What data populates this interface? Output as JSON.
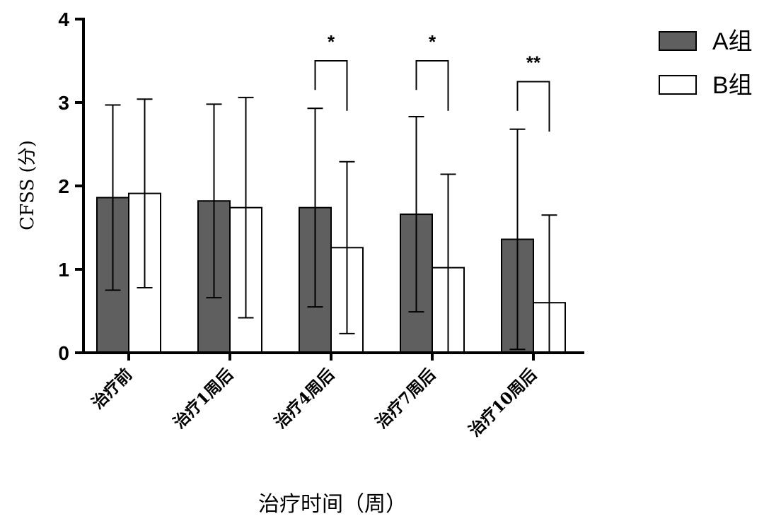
{
  "chart_data": {
    "type": "bar",
    "title": "",
    "xlabel": "治疗时间（周）",
    "ylabel": "CFSS (分)",
    "ylim": [
      0,
      4
    ],
    "yticks": [
      0,
      1,
      2,
      3,
      4
    ],
    "categories": [
      "治疗前",
      "治疗1周后",
      "治疗4周后",
      "治疗7周后",
      "治疗10周后"
    ],
    "series": [
      {
        "name": "A组",
        "fill": "#5f5f5f",
        "values": [
          1.86,
          1.82,
          1.74,
          1.66,
          1.36
        ],
        "error": [
          1.11,
          1.16,
          1.19,
          1.17,
          1.32
        ]
      },
      {
        "name": "B组",
        "fill": "#ffffff",
        "values": [
          1.91,
          1.74,
          1.26,
          1.02,
          0.6
        ],
        "error": [
          1.13,
          1.32,
          1.03,
          1.12,
          1.05
        ]
      }
    ],
    "significance": [
      {
        "category": "治疗4周后",
        "label": "*",
        "level": 3.5
      },
      {
        "category": "治疗7周后",
        "label": "*",
        "level": 3.5
      },
      {
        "category": "治疗10周后",
        "label": "**",
        "level": 3.25
      }
    ],
    "legend_position": "top-right",
    "grid": false
  }
}
